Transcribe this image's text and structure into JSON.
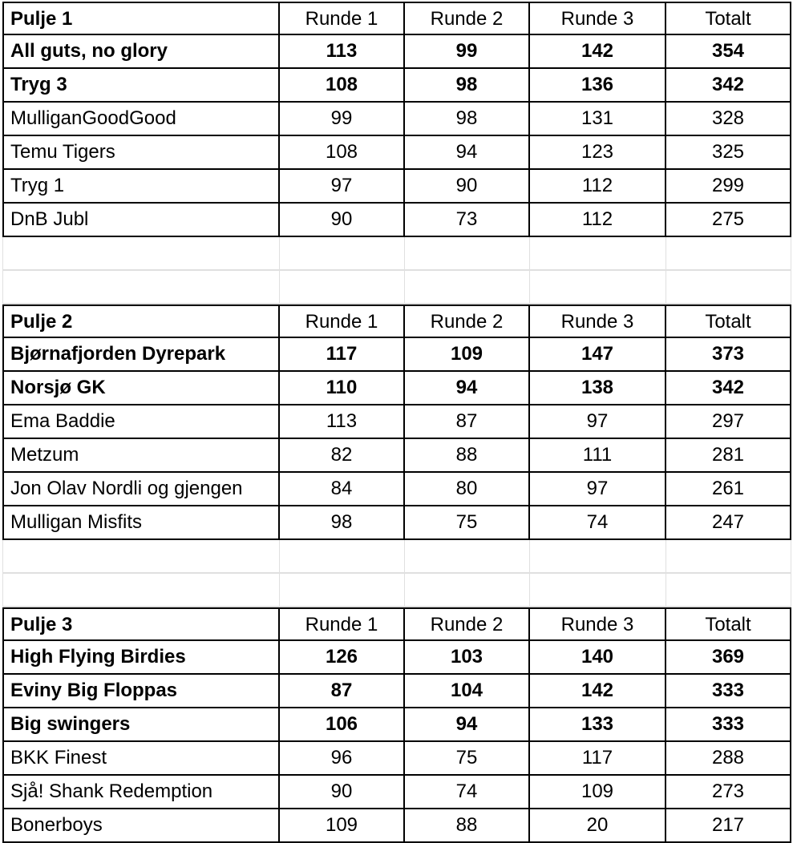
{
  "headers": [
    "Runde 1",
    "Runde 2",
    "Runde 3",
    "Totalt"
  ],
  "groups": [
    {
      "title": "Pulje 1",
      "rows": [
        {
          "team": "All guts, no glory",
          "r1": "113",
          "r2": "99",
          "r3": "142",
          "total": "354",
          "bold": true
        },
        {
          "team": "Tryg 3",
          "r1": "108",
          "r2": "98",
          "r3": "136",
          "total": "342",
          "bold": true
        },
        {
          "team": "MulliganGoodGood",
          "r1": "99",
          "r2": "98",
          "r3": "131",
          "total": "328",
          "bold": false
        },
        {
          "team": "Temu Tigers",
          "r1": "108",
          "r2": "94",
          "r3": "123",
          "total": "325",
          "bold": false
        },
        {
          "team": "Tryg 1",
          "r1": "97",
          "r2": "90",
          "r3": "112",
          "total": "299",
          "bold": false
        },
        {
          "team": "DnB Jubl",
          "r1": "90",
          "r2": "73",
          "r3": "112",
          "total": "275",
          "bold": false
        }
      ]
    },
    {
      "title": "Pulje 2",
      "rows": [
        {
          "team": "Bjørnafjorden Dyrepark",
          "r1": "117",
          "r2": "109",
          "r3": "147",
          "total": "373",
          "bold": true
        },
        {
          "team": "Norsjø GK",
          "r1": "110",
          "r2": "94",
          "r3": "138",
          "total": "342",
          "bold": true
        },
        {
          "team": "Ema Baddie",
          "r1": "113",
          "r2": "87",
          "r3": "97",
          "total": "297",
          "bold": false
        },
        {
          "team": "Metzum",
          "r1": "82",
          "r2": "88",
          "r3": "111",
          "total": "281",
          "bold": false
        },
        {
          "team": "Jon Olav Nordli og gjengen",
          "r1": "84",
          "r2": "80",
          "r3": "97",
          "total": "261",
          "bold": false
        },
        {
          "team": "Mulligan Misfits",
          "r1": "98",
          "r2": "75",
          "r3": "74",
          "total": "247",
          "bold": false
        }
      ]
    },
    {
      "title": "Pulje 3",
      "rows": [
        {
          "team": "High Flying Birdies",
          "r1": "126",
          "r2": "103",
          "r3": "140",
          "total": "369",
          "bold": true
        },
        {
          "team": "Eviny Big Floppas",
          "r1": "87",
          "r2": "104",
          "r3": "142",
          "total": "333",
          "bold": true
        },
        {
          "team": "Big swingers",
          "r1": "106",
          "r2": "94",
          "r3": "133",
          "total": "333",
          "bold": true
        },
        {
          "team": "BKK Finest",
          "r1": "96",
          "r2": "75",
          "r3": "117",
          "total": "288",
          "bold": false
        },
        {
          "team": "Sjå! Shank Redemption",
          "r1": "90",
          "r2": "74",
          "r3": "109",
          "total": "273",
          "bold": false
        },
        {
          "team": "Bonerboys",
          "r1": "109",
          "r2": "88",
          "r3": "20",
          "total": "217",
          "bold": false
        }
      ]
    }
  ]
}
